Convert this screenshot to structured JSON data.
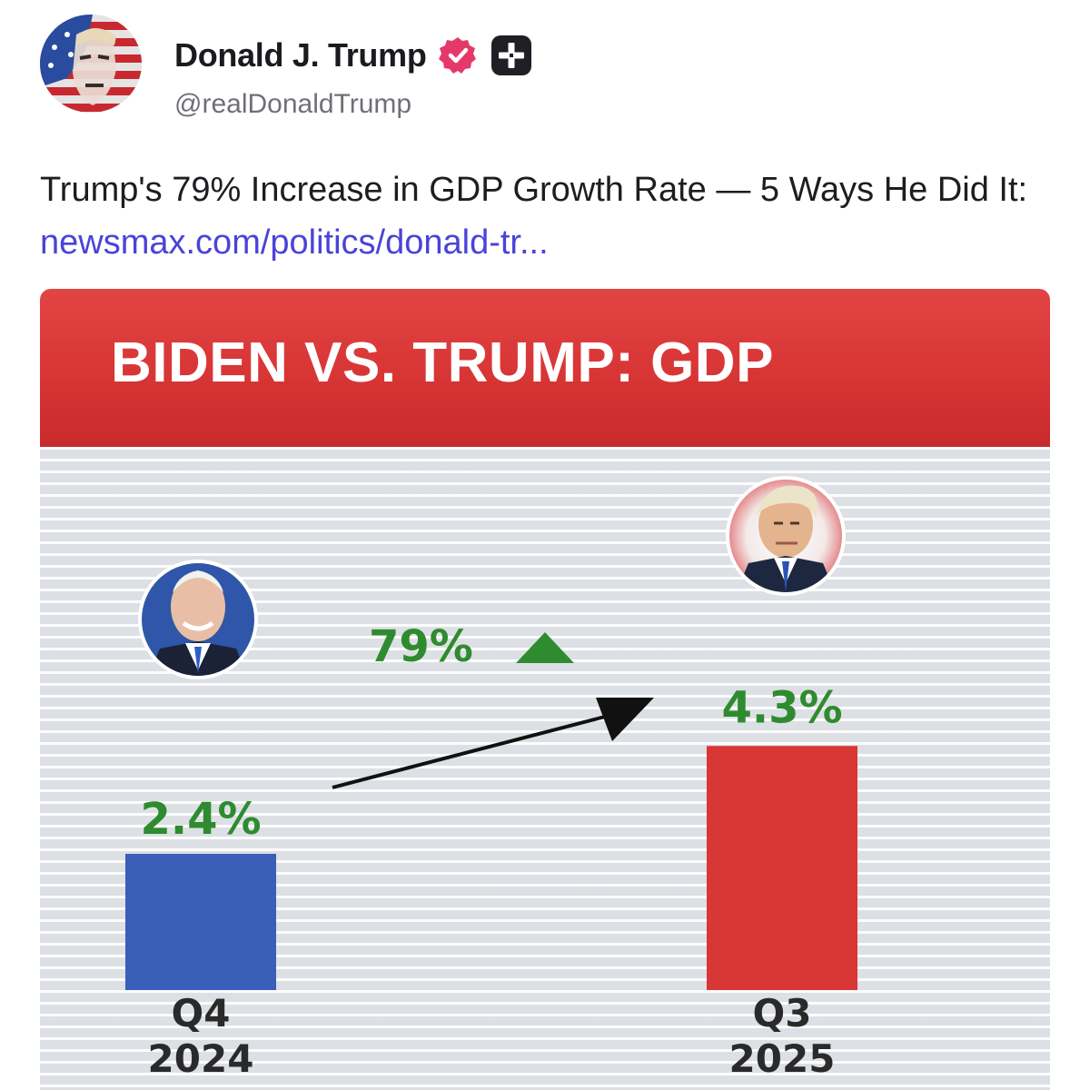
{
  "post": {
    "author": {
      "display_name": "Donald J. Trump",
      "handle": "@realDonaldTrump",
      "verified_icon": "verified-badge-icon",
      "extra_badge_icon": "plus-badge-icon",
      "accent_color": "#e5396a"
    },
    "text": "Trump's 79% Increase in GDP Growth Rate — 5 Ways He Did It:",
    "link_text": "newsmax.com/politics/donald-tr...",
    "link_color": "#4a43d9"
  },
  "media": {
    "banner_color": "#d83535",
    "chart_data": {
      "type": "bar",
      "title": "BIDEN VS. TRUMP: GDP",
      "categories": [
        {
          "line1": "Q4",
          "line2": "2024"
        },
        {
          "line1": "Q3",
          "line2": "2025"
        }
      ],
      "values": [
        2.4,
        4.3
      ],
      "value_labels": [
        "2.4%",
        "4.3%"
      ],
      "bar_colors": [
        "#3a5fb8",
        "#d93636"
      ],
      "change_label": "79%",
      "change_direction": "up",
      "change_color": "#2f8b2f",
      "portraits": [
        "biden-portrait",
        "trump-portrait"
      ]
    }
  }
}
